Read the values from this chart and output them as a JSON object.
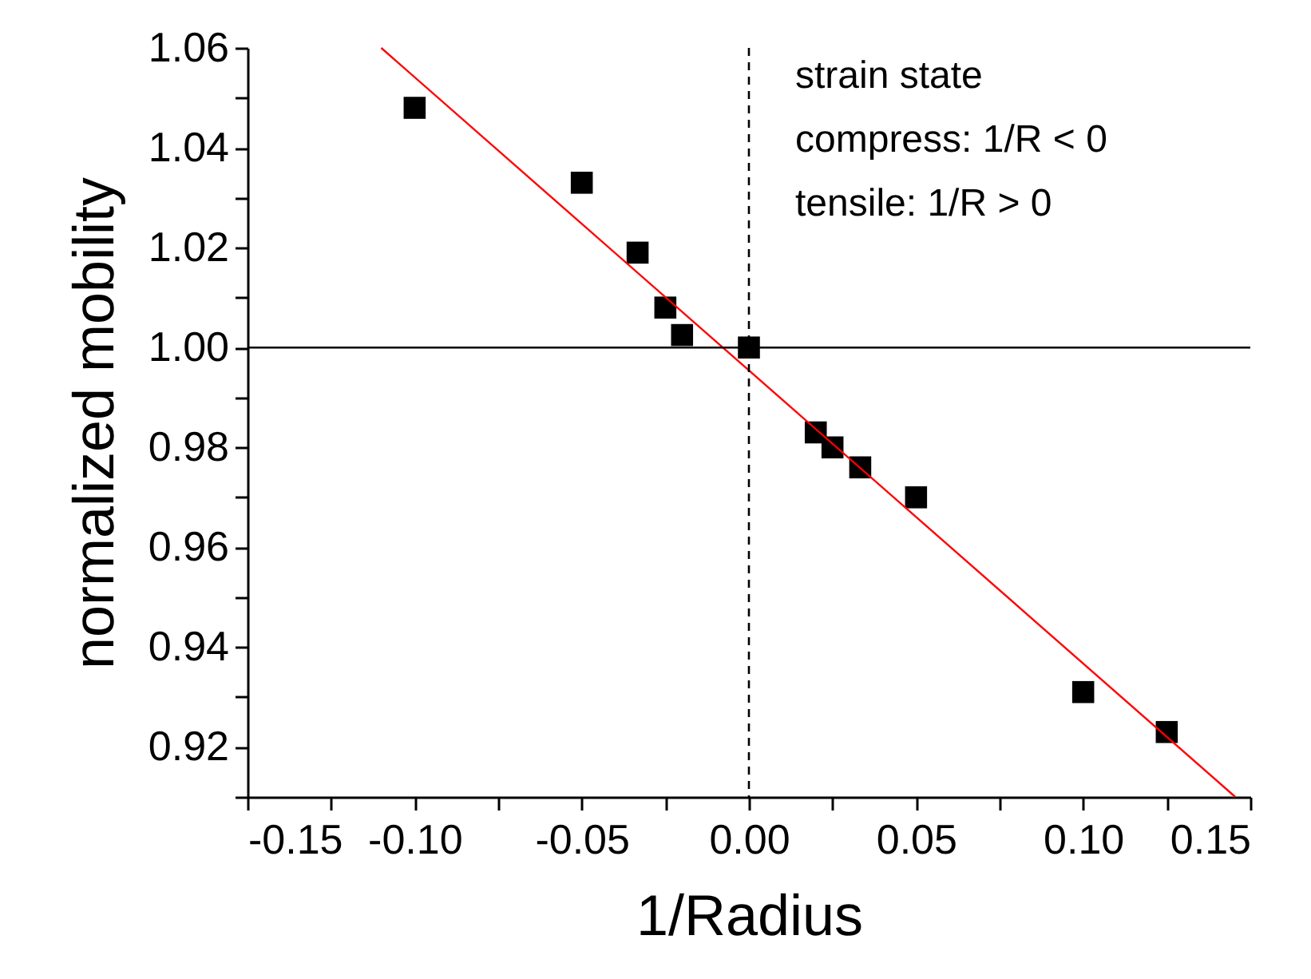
{
  "chart_data": {
    "type": "scatter",
    "xlabel": "1/Radius",
    "ylabel": "normalized mobility",
    "annotations": [
      "strain state",
      "compress: 1/R < 0",
      "tensile: 1/R > 0"
    ],
    "series": [
      {
        "type": "scatter",
        "color": "#000000",
        "marker": "square",
        "x": [
          -0.1,
          -0.05,
          -0.0333,
          -0.025,
          -0.02,
          0.0,
          0.02,
          0.025,
          0.0333,
          0.05,
          0.1,
          0.125
        ],
        "values": [
          1.048,
          1.033,
          1.019,
          1.008,
          1.0025,
          1.0,
          0.983,
          0.98,
          0.976,
          0.97,
          0.931,
          0.923
        ]
      },
      {
        "type": "line",
        "color": "#ff0000",
        "marker": "none",
        "line_style": "solid",
        "x": [
          -0.11,
          0.1455
        ],
        "values": [
          1.06,
          0.91
        ]
      }
    ],
    "ref_lines": [
      {
        "axis": "x",
        "value": 0.0,
        "color": "#000000",
        "line_style": "dashed"
      },
      {
        "axis": "y",
        "value": 1.0,
        "color": "#000000",
        "line_style": "solid"
      }
    ],
    "xlim": [
      -0.15,
      0.15
    ],
    "xticks": [
      {
        "value": -0.15,
        "label": "-0.15"
      },
      {
        "value": -0.125,
        "label": null
      },
      {
        "value": -0.1,
        "label": "-0.10"
      },
      {
        "value": -0.075,
        "label": null
      },
      {
        "value": -0.05,
        "label": "-0.05"
      },
      {
        "value": -0.025,
        "label": null
      },
      {
        "value": 0.0,
        "label": "0.00"
      },
      {
        "value": 0.025,
        "label": null
      },
      {
        "value": 0.05,
        "label": "0.05"
      },
      {
        "value": 0.075,
        "label": null
      },
      {
        "value": 0.1,
        "label": "0.10"
      },
      {
        "value": 0.125,
        "label": null
      },
      {
        "value": 0.15,
        "label": "0.15"
      }
    ],
    "ylim": [
      0.91,
      1.06
    ],
    "yticks": [
      {
        "value": 0.91,
        "label": null
      },
      {
        "value": 0.92,
        "label": "0.92"
      },
      {
        "value": 0.93,
        "label": null
      },
      {
        "value": 0.94,
        "label": "0.94"
      },
      {
        "value": 0.95,
        "label": null
      },
      {
        "value": 0.96,
        "label": "0.96"
      },
      {
        "value": 0.97,
        "label": null
      },
      {
        "value": 0.98,
        "label": "0.98"
      },
      {
        "value": 0.99,
        "label": null
      },
      {
        "value": 1.0,
        "label": "1.00"
      },
      {
        "value": 1.01,
        "label": null
      },
      {
        "value": 1.02,
        "label": "1.02"
      },
      {
        "value": 1.03,
        "label": null
      },
      {
        "value": 1.04,
        "label": "1.04"
      },
      {
        "value": 1.05,
        "label": null
      },
      {
        "value": 1.06,
        "label": "1.06"
      }
    ],
    "grid": false
  }
}
